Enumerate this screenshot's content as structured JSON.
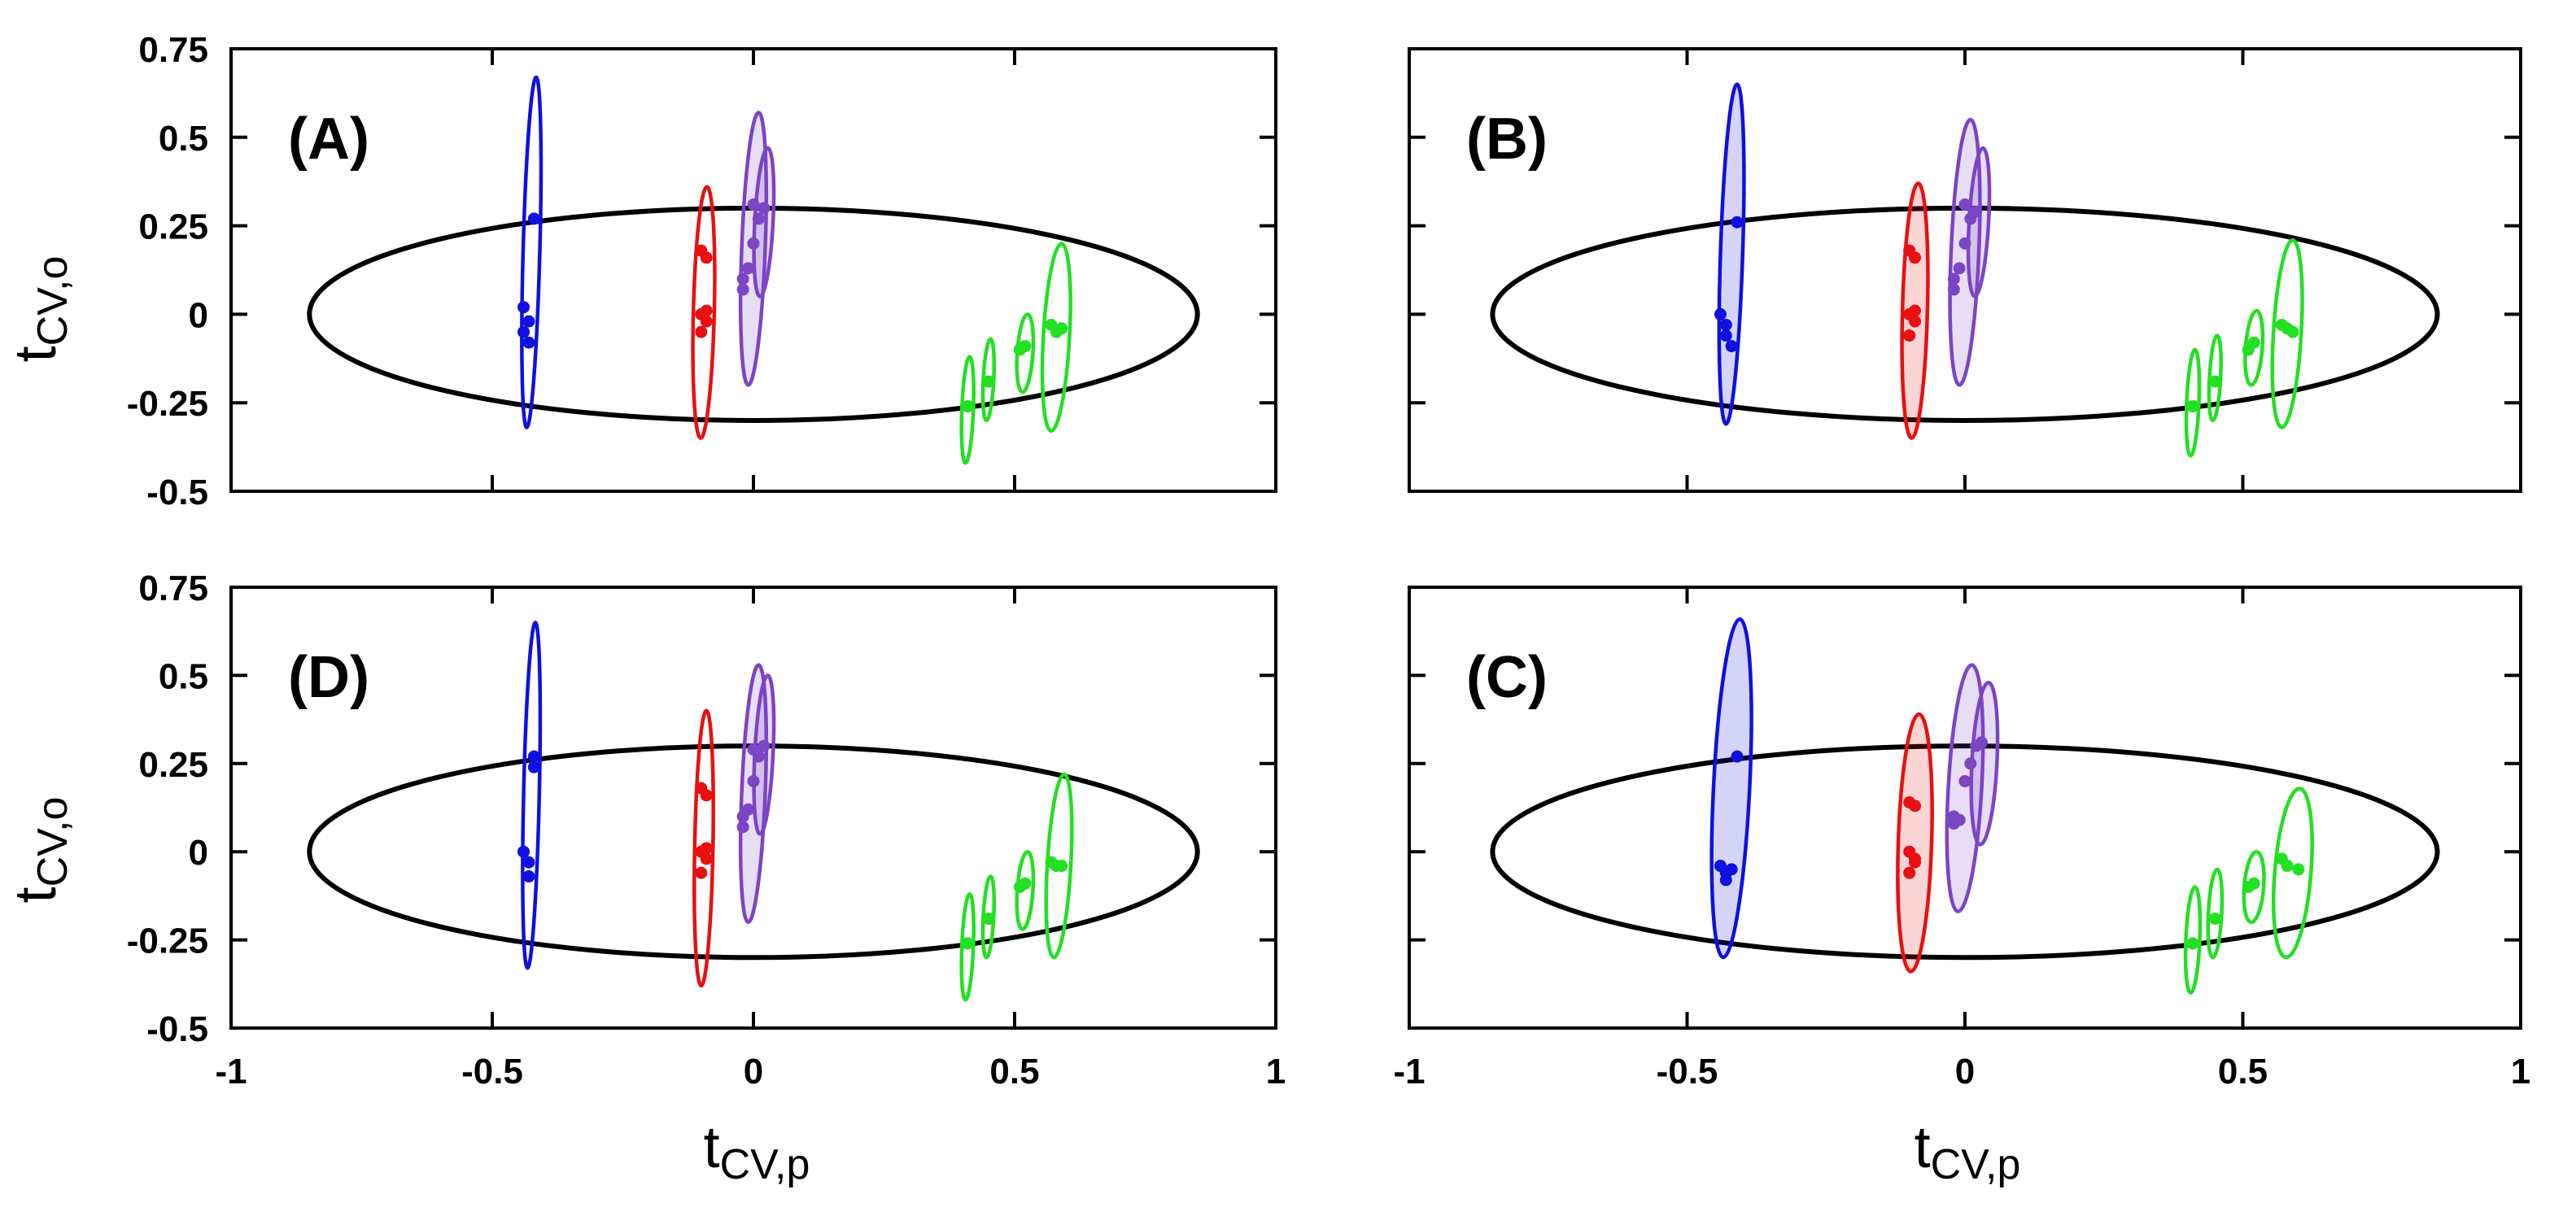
{
  "chart_data": [
    {
      "type": "scatter",
      "panel_label": "(A)",
      "xlabel": "tCV,p",
      "ylabel": "tCV,o",
      "xlim": [
        -1,
        1
      ],
      "ylim": [
        -0.5,
        0.75
      ],
      "xticks": [
        "-1",
        "-0.5",
        "0",
        "0.5",
        "1"
      ],
      "yticks": [
        "-0.5",
        "-0.25",
        "0",
        "0.25",
        "0.5",
        "0.75"
      ],
      "reference_ellipse": {
        "cx": 0,
        "cy": 0,
        "rx": 0.85,
        "ry": 0.3
      },
      "series": [
        {
          "color": "#1010e0",
          "filled": false,
          "points": [
            [
              -0.44,
              0.02
            ],
            [
              -0.43,
              -0.02
            ],
            [
              -0.44,
              -0.05
            ],
            [
              -0.43,
              -0.08
            ],
            [
              -0.42,
              0.27
            ]
          ],
          "regions": [
            {
              "cx": -0.425,
              "yb": -0.32,
              "yt": 0.67,
              "w": 0.032,
              "lean": 0.018
            }
          ]
        },
        {
          "color": "#e81010",
          "filled": false,
          "points": [
            [
              -0.1,
              0.18
            ],
            [
              -0.09,
              0.16
            ],
            [
              -0.1,
              0.0
            ],
            [
              -0.09,
              -0.02
            ],
            [
              -0.1,
              -0.05
            ],
            [
              -0.09,
              0.01
            ]
          ],
          "regions": [
            {
              "cx": -0.095,
              "yb": -0.35,
              "yt": 0.36,
              "w": 0.04,
              "lean": 0.012
            }
          ]
        },
        {
          "color": "#7b45c6",
          "filled": true,
          "points": [
            [
              -0.02,
              0.1
            ],
            [
              -0.01,
              0.13
            ],
            [
              -0.02,
              0.07
            ],
            [
              0.0,
              0.2
            ],
            [
              0.01,
              0.27
            ],
            [
              0.0,
              0.31
            ],
            [
              0.02,
              0.3
            ]
          ],
          "regions": [
            {
              "cx": 0.0,
              "yb": -0.2,
              "yt": 0.57,
              "w": 0.045,
              "lean": 0.02
            },
            {
              "cx": 0.02,
              "yb": 0.05,
              "yt": 0.47,
              "w": 0.035,
              "lean": 0.015
            }
          ]
        },
        {
          "color": "#22e022",
          "filled": false,
          "points": [
            [
              0.41,
              -0.26
            ],
            [
              0.45,
              -0.19
            ],
            [
              0.51,
              -0.1
            ],
            [
              0.52,
              -0.09
            ],
            [
              0.57,
              -0.03
            ],
            [
              0.58,
              -0.05
            ],
            [
              0.59,
              -0.04
            ]
          ],
          "regions": [
            {
              "cx": 0.41,
              "yb": -0.42,
              "yt": -0.12,
              "w": 0.022,
              "lean": 0.008
            },
            {
              "cx": 0.45,
              "yb": -0.3,
              "yt": -0.07,
              "w": 0.02,
              "lean": 0.008
            },
            {
              "cx": 0.52,
              "yb": -0.22,
              "yt": 0.0,
              "w": 0.03,
              "lean": 0.01
            },
            {
              "cx": 0.58,
              "yb": -0.33,
              "yt": 0.2,
              "w": 0.05,
              "lean": 0.02
            }
          ]
        }
      ]
    },
    {
      "type": "scatter",
      "panel_label": "(B)",
      "xlabel": "tCV,p",
      "ylabel": "",
      "xlim": [
        -1,
        1
      ],
      "ylim": [
        -0.5,
        0.75
      ],
      "xticks": [
        "-1",
        "-0.5",
        "0",
        "0.5",
        "1"
      ],
      "yticks": [],
      "reference_ellipse": {
        "cx": 0,
        "cy": 0,
        "rx": 0.85,
        "ry": 0.3
      },
      "series": [
        {
          "color": "#1010e0",
          "filled": true,
          "points": [
            [
              -0.44,
              0.0
            ],
            [
              -0.43,
              -0.03
            ],
            [
              -0.43,
              -0.06
            ],
            [
              -0.42,
              -0.09
            ],
            [
              -0.41,
              0.26
            ]
          ],
          "regions": [
            {
              "cx": -0.42,
              "yb": -0.31,
              "yt": 0.65,
              "w": 0.04,
              "lean": 0.02
            }
          ]
        },
        {
          "color": "#e81010",
          "filled": true,
          "points": [
            [
              -0.1,
              0.18
            ],
            [
              -0.09,
              0.16
            ],
            [
              -0.1,
              0.0
            ],
            [
              -0.09,
              -0.02
            ],
            [
              -0.1,
              -0.06
            ],
            [
              -0.09,
              0.01
            ]
          ],
          "regions": [
            {
              "cx": -0.09,
              "yb": -0.35,
              "yt": 0.37,
              "w": 0.045,
              "lean": 0.012
            }
          ]
        },
        {
          "color": "#7b45c6",
          "filled": true,
          "points": [
            [
              -0.02,
              0.1
            ],
            [
              -0.01,
              0.13
            ],
            [
              -0.02,
              0.07
            ],
            [
              0.0,
              0.2
            ],
            [
              0.01,
              0.27
            ],
            [
              0.0,
              0.31
            ],
            [
              0.02,
              0.29
            ]
          ],
          "regions": [
            {
              "cx": 0.0,
              "yb": -0.2,
              "yt": 0.55,
              "w": 0.05,
              "lean": 0.02
            },
            {
              "cx": 0.025,
              "yb": 0.05,
              "yt": 0.47,
              "w": 0.035,
              "lean": 0.015
            }
          ]
        },
        {
          "color": "#22e022",
          "filled": false,
          "points": [
            [
              0.41,
              -0.26
            ],
            [
              0.45,
              -0.19
            ],
            [
              0.51,
              -0.1
            ],
            [
              0.52,
              -0.08
            ],
            [
              0.57,
              -0.03
            ],
            [
              0.58,
              -0.04
            ],
            [
              0.59,
              -0.05
            ]
          ],
          "regions": [
            {
              "cx": 0.41,
              "yb": -0.4,
              "yt": -0.1,
              "w": 0.022,
              "lean": 0.008
            },
            {
              "cx": 0.45,
              "yb": -0.3,
              "yt": -0.06,
              "w": 0.02,
              "lean": 0.008
            },
            {
              "cx": 0.52,
              "yb": -0.2,
              "yt": 0.01,
              "w": 0.03,
              "lean": 0.01
            },
            {
              "cx": 0.58,
              "yb": -0.32,
              "yt": 0.21,
              "w": 0.05,
              "lean": 0.02
            }
          ]
        }
      ]
    },
    {
      "type": "scatter",
      "panel_label": "(D)",
      "xlabel": "tCV,p",
      "ylabel": "tCV,o",
      "xlim": [
        -1,
        1
      ],
      "ylim": [
        -0.5,
        0.75
      ],
      "xticks": [
        "-1",
        "-0.5",
        "0",
        "0.5",
        "1"
      ],
      "yticks": [
        "-0.5",
        "-0.25",
        "0",
        "0.25",
        "0.5",
        "0.75"
      ],
      "reference_ellipse": {
        "cx": 0,
        "cy": 0,
        "rx": 0.85,
        "ry": 0.3
      },
      "series": [
        {
          "color": "#1010e0",
          "filled": false,
          "points": [
            [
              -0.44,
              0.0
            ],
            [
              -0.43,
              -0.03
            ],
            [
              -0.43,
              -0.07
            ],
            [
              -0.42,
              0.24
            ],
            [
              -0.42,
              0.27
            ]
          ],
          "regions": [
            {
              "cx": -0.425,
              "yb": -0.33,
              "yt": 0.65,
              "w": 0.03,
              "lean": 0.015
            }
          ]
        },
        {
          "color": "#e81010",
          "filled": false,
          "points": [
            [
              -0.1,
              0.18
            ],
            [
              -0.09,
              0.16
            ],
            [
              -0.1,
              0.0
            ],
            [
              -0.09,
              -0.02
            ],
            [
              -0.1,
              -0.06
            ],
            [
              -0.09,
              0.01
            ]
          ],
          "regions": [
            {
              "cx": -0.095,
              "yb": -0.38,
              "yt": 0.4,
              "w": 0.035,
              "lean": 0.01
            }
          ]
        },
        {
          "color": "#7b45c6",
          "filled": true,
          "points": [
            [
              -0.02,
              0.1
            ],
            [
              -0.01,
              0.12
            ],
            [
              -0.02,
              0.07
            ],
            [
              0.0,
              0.2
            ],
            [
              0.01,
              0.27
            ],
            [
              0.0,
              0.29
            ],
            [
              0.02,
              0.3
            ]
          ],
          "regions": [
            {
              "cx": 0.0,
              "yb": -0.2,
              "yt": 0.53,
              "w": 0.045,
              "lean": 0.02
            },
            {
              "cx": 0.02,
              "yb": 0.05,
              "yt": 0.5,
              "w": 0.035,
              "lean": 0.015
            }
          ]
        },
        {
          "color": "#22e022",
          "filled": false,
          "points": [
            [
              0.41,
              -0.26
            ],
            [
              0.45,
              -0.19
            ],
            [
              0.51,
              -0.1
            ],
            [
              0.52,
              -0.09
            ],
            [
              0.57,
              -0.03
            ],
            [
              0.58,
              -0.04
            ],
            [
              0.59,
              -0.04
            ]
          ],
          "regions": [
            {
              "cx": 0.41,
              "yb": -0.42,
              "yt": -0.12,
              "w": 0.022,
              "lean": 0.008
            },
            {
              "cx": 0.45,
              "yb": -0.3,
              "yt": -0.07,
              "w": 0.02,
              "lean": 0.008
            },
            {
              "cx": 0.52,
              "yb": -0.22,
              "yt": 0.0,
              "w": 0.03,
              "lean": 0.01
            },
            {
              "cx": 0.585,
              "yb": -0.3,
              "yt": 0.22,
              "w": 0.045,
              "lean": 0.02
            }
          ]
        }
      ]
    },
    {
      "type": "scatter",
      "panel_label": "(C)",
      "xlabel": "tCV,p",
      "ylabel": "",
      "xlim": [
        -1,
        1
      ],
      "ylim": [
        -0.5,
        0.75
      ],
      "xticks": [
        "-1",
        "-0.5",
        "0",
        "0.5",
        "1"
      ],
      "yticks": [],
      "reference_ellipse": {
        "cx": 0,
        "cy": 0,
        "rx": 0.85,
        "ry": 0.3
      },
      "series": [
        {
          "color": "#1010e0",
          "filled": true,
          "points": [
            [
              -0.44,
              -0.04
            ],
            [
              -0.43,
              -0.06
            ],
            [
              -0.43,
              -0.08
            ],
            [
              -0.42,
              -0.05
            ],
            [
              -0.41,
              0.27
            ]
          ],
          "regions": [
            {
              "cx": -0.42,
              "yb": -0.3,
              "yt": 0.66,
              "w": 0.065,
              "lean": 0.03
            }
          ]
        },
        {
          "color": "#e81010",
          "filled": true,
          "points": [
            [
              -0.1,
              0.14
            ],
            [
              -0.09,
              0.13
            ],
            [
              -0.1,
              0.0
            ],
            [
              -0.09,
              -0.03
            ],
            [
              -0.1,
              -0.06
            ],
            [
              -0.09,
              -0.02
            ]
          ],
          "regions": [
            {
              "cx": -0.09,
              "yb": -0.34,
              "yt": 0.39,
              "w": 0.06,
              "lean": 0.015
            }
          ]
        },
        {
          "color": "#7b45c6",
          "filled": true,
          "points": [
            [
              -0.02,
              0.1
            ],
            [
              -0.01,
              0.09
            ],
            [
              -0.02,
              0.08
            ],
            [
              0.0,
              0.2
            ],
            [
              0.01,
              0.25
            ],
            [
              0.02,
              0.3
            ],
            [
              0.03,
              0.31
            ]
          ],
          "regions": [
            {
              "cx": 0.0,
              "yb": -0.17,
              "yt": 0.53,
              "w": 0.06,
              "lean": 0.025
            },
            {
              "cx": 0.035,
              "yb": 0.02,
              "yt": 0.48,
              "w": 0.045,
              "lean": 0.015
            }
          ]
        },
        {
          "color": "#22e022",
          "filled": false,
          "points": [
            [
              0.41,
              -0.26
            ],
            [
              0.45,
              -0.19
            ],
            [
              0.51,
              -0.1
            ],
            [
              0.52,
              -0.09
            ],
            [
              0.57,
              -0.02
            ],
            [
              0.58,
              -0.04
            ],
            [
              0.6,
              -0.05
            ]
          ],
          "regions": [
            {
              "cx": 0.41,
              "yb": -0.4,
              "yt": -0.1,
              "w": 0.025,
              "lean": 0.008
            },
            {
              "cx": 0.45,
              "yb": -0.3,
              "yt": -0.05,
              "w": 0.024,
              "lean": 0.008
            },
            {
              "cx": 0.52,
              "yb": -0.2,
              "yt": 0.0,
              "w": 0.035,
              "lean": 0.01
            },
            {
              "cx": 0.59,
              "yb": -0.3,
              "yt": 0.18,
              "w": 0.065,
              "lean": 0.025
            }
          ]
        }
      ]
    }
  ],
  "axis_titles": {
    "y_top": {
      "base": "t",
      "sub": "CV,o"
    },
    "y_bottom": {
      "base": "t",
      "sub": "CV,o"
    },
    "x_left": {
      "base": "t",
      "sub": "CV,p"
    },
    "x_right": {
      "base": "t",
      "sub": "CV,p"
    }
  }
}
